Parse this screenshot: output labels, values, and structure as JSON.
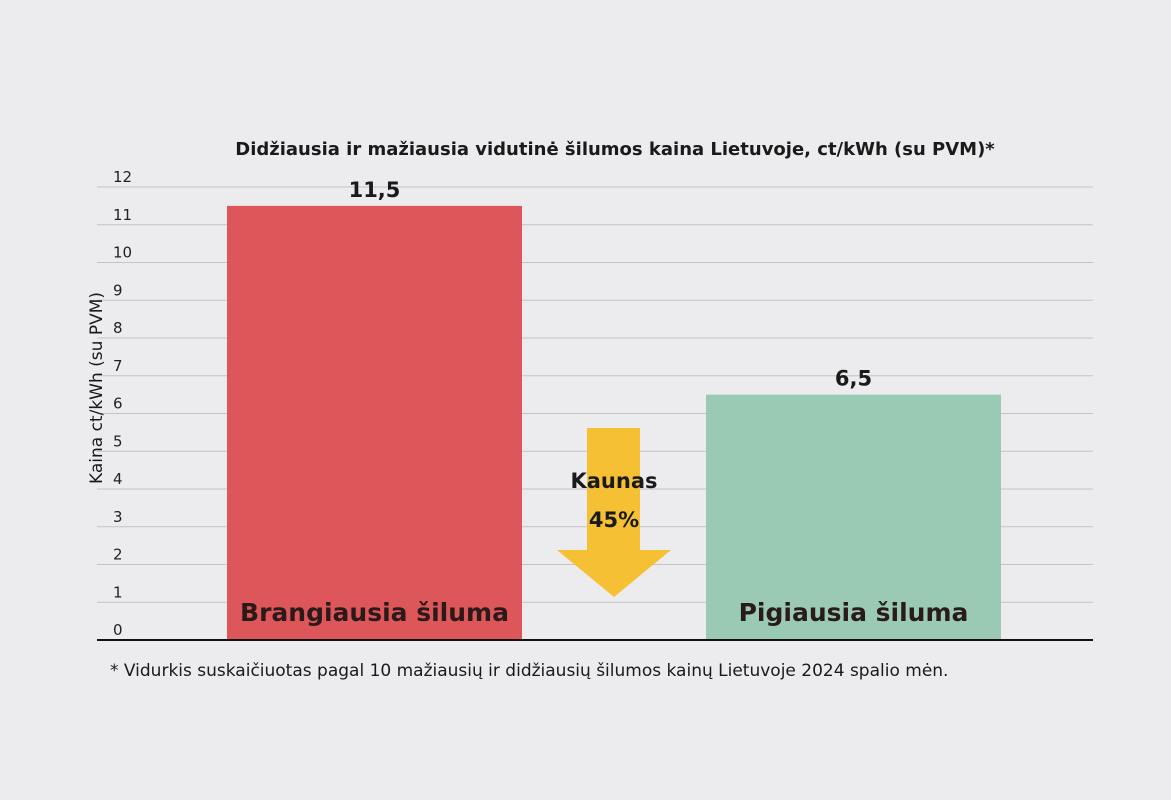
{
  "chart_data": {
    "type": "bar",
    "title": "Didžiausia ir mažiausia vidutinė šilumos kaina Lietuvoje, ct/kWh (su PVM)*",
    "ylabel": "Kaina ct/kWh (su PVM)",
    "xlabel": "",
    "ylim": [
      0,
      12
    ],
    "yticks": [
      0,
      1,
      2,
      3,
      4,
      5,
      6,
      7,
      8,
      9,
      10,
      11,
      12
    ],
    "grid": true,
    "categories": [
      "Brangiausia šiluma",
      "Pigiausia šiluma"
    ],
    "values": [
      11.5,
      6.5
    ],
    "value_labels": [
      "11,5",
      "6,5"
    ],
    "colors": [
      "#dc565a",
      "#9bcab4"
    ],
    "annotation": {
      "lines": [
        "Kaunas",
        "45%"
      ],
      "icon": "down-arrow-icon",
      "color": "#f5c034"
    },
    "footnote": "* Vidurkis suskaičiuotas pagal 10 mažiausių ir didžiausių šilumos kainų Lietuvoje 2024 spalio mėn."
  }
}
